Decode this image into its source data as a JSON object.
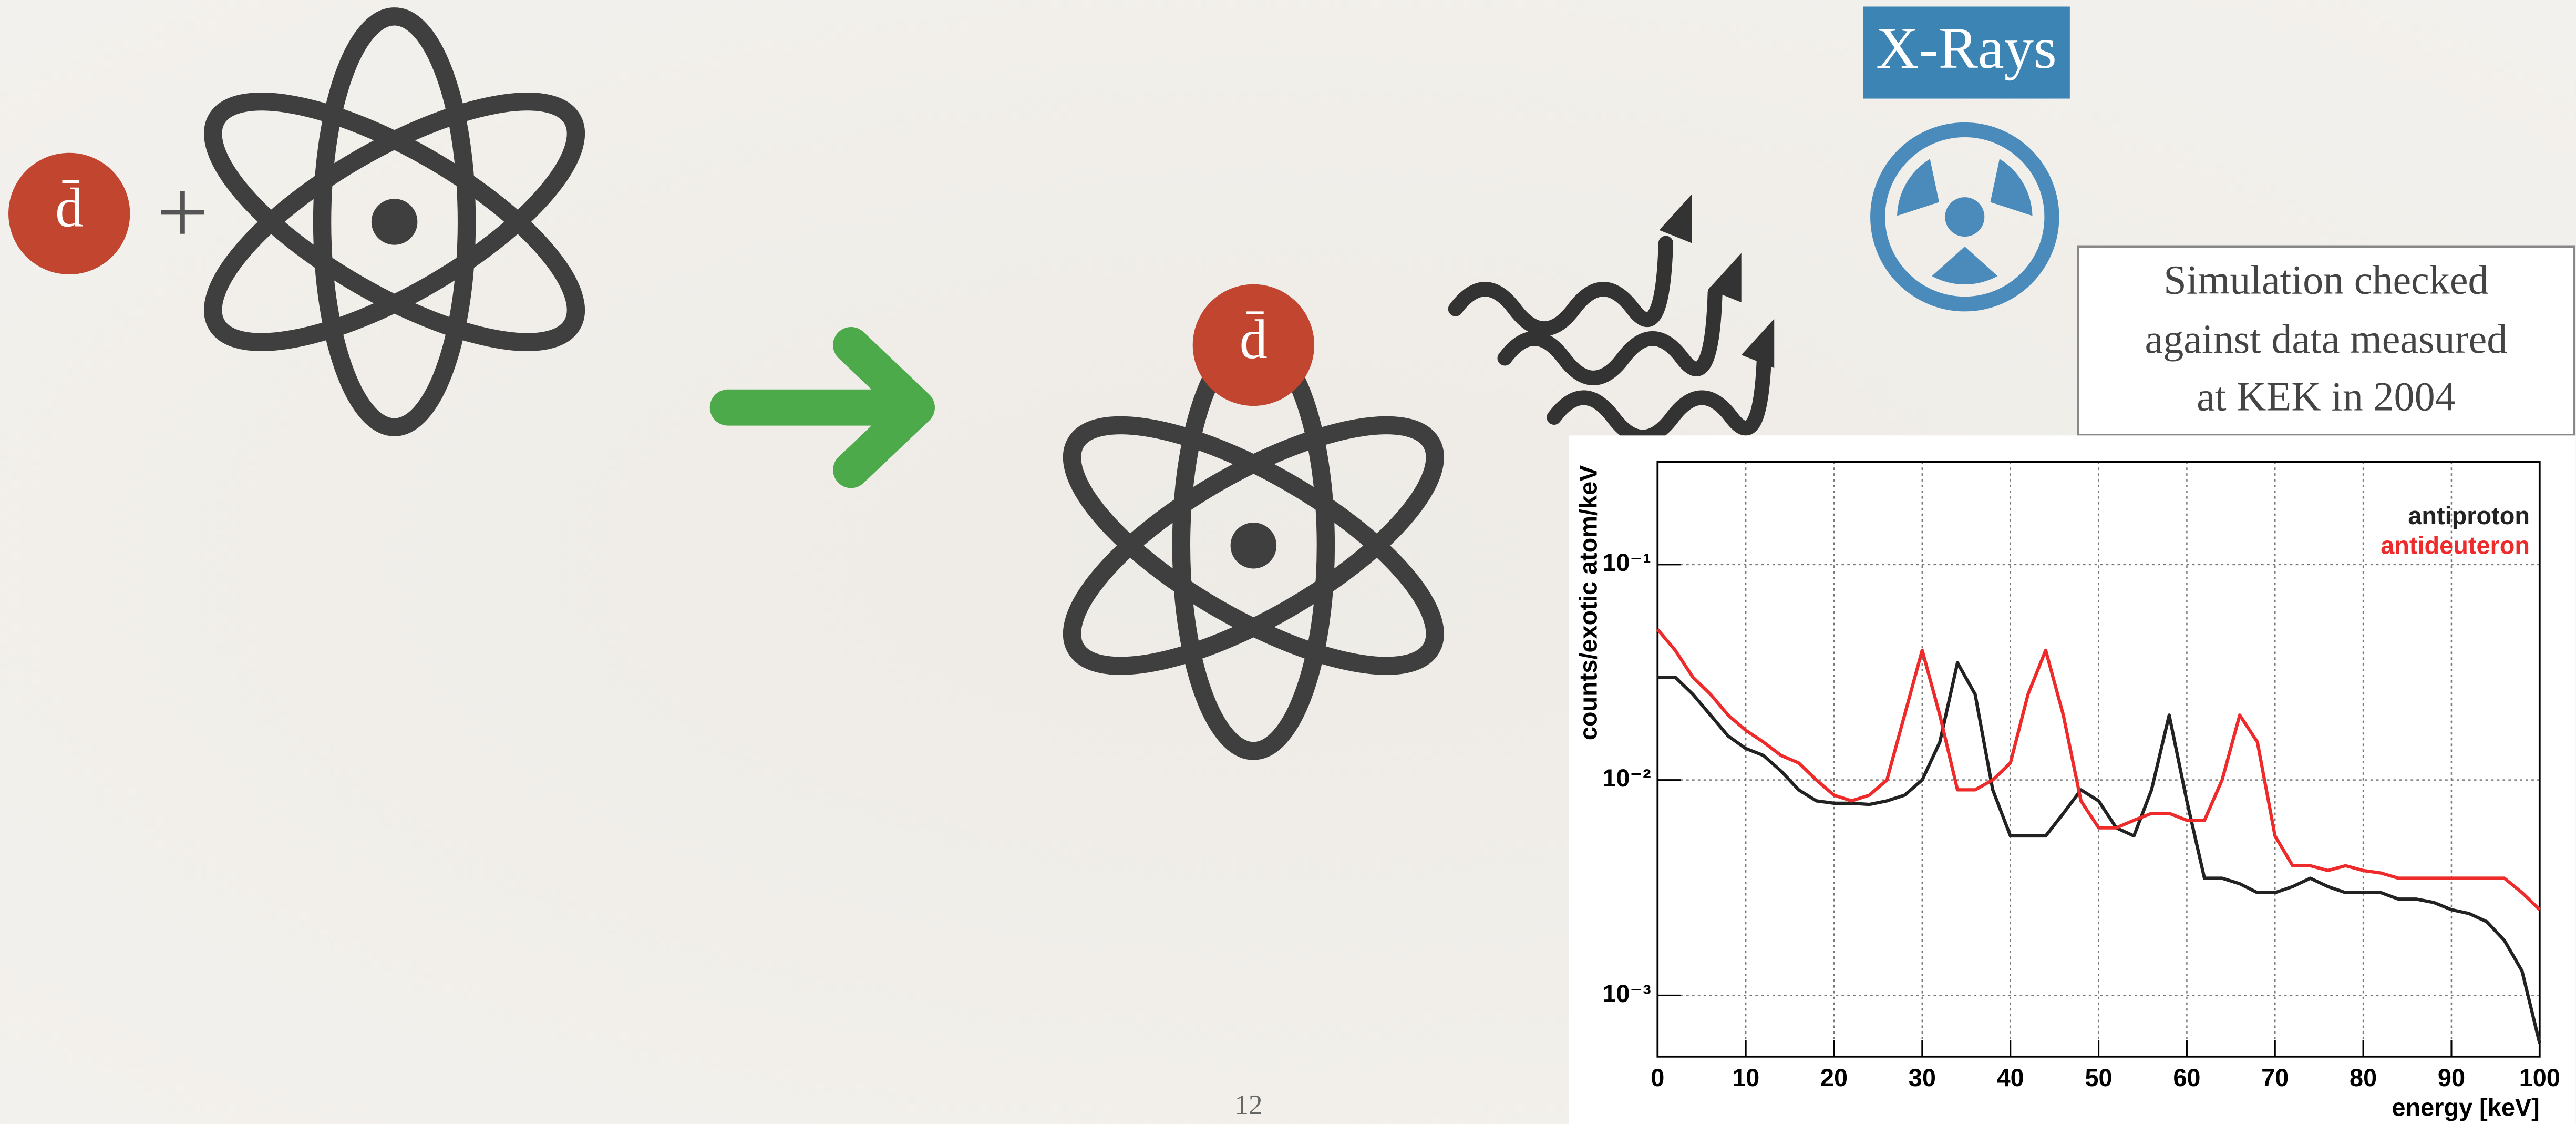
{
  "slide": {
    "antiparticle_label": "d̄",
    "bound_label": "d̄",
    "plus": "+",
    "xrays_label": "X-Rays",
    "callout": [
      "Simulation checked",
      "against data measured",
      "at KEK in 2004"
    ],
    "page_number": "12"
  },
  "chart_data": {
    "type": "line",
    "xlabel": "energy [keV]",
    "ylabel": "counts/exotic atom/keV",
    "x": [
      0,
      2,
      4,
      6,
      8,
      10,
      12,
      14,
      16,
      18,
      20,
      22,
      24,
      26,
      28,
      30,
      32,
      34,
      36,
      38,
      40,
      42,
      44,
      46,
      48,
      50,
      52,
      54,
      56,
      58,
      60,
      62,
      64,
      66,
      68,
      70,
      72,
      74,
      76,
      78,
      80,
      82,
      84,
      86,
      88,
      90,
      92,
      94,
      96,
      98,
      100
    ],
    "series": [
      {
        "name": "antiproton",
        "color": "#222222",
        "values": [
          0.03,
          0.03,
          0.025,
          0.02,
          0.016,
          0.014,
          0.013,
          0.011,
          0.009,
          0.008,
          0.0078,
          0.0078,
          0.0077,
          0.008,
          0.0085,
          0.01,
          0.015,
          0.035,
          0.025,
          0.009,
          0.0055,
          0.0055,
          0.0055,
          0.007,
          0.009,
          0.008,
          0.006,
          0.0055,
          0.009,
          0.02,
          0.008,
          0.0035,
          0.0035,
          0.0033,
          0.003,
          0.003,
          0.0032,
          0.0035,
          0.0032,
          0.003,
          0.003,
          0.003,
          0.0028,
          0.0028,
          0.0027,
          0.0025,
          0.0024,
          0.0022,
          0.0018,
          0.0013,
          0.0006
        ]
      },
      {
        "name": "antideuteron",
        "color": "#ee2a2a",
        "values": [
          0.05,
          0.04,
          0.03,
          0.025,
          0.02,
          0.017,
          0.015,
          0.013,
          0.012,
          0.01,
          0.0085,
          0.008,
          0.0085,
          0.01,
          0.02,
          0.04,
          0.02,
          0.009,
          0.009,
          0.01,
          0.012,
          0.025,
          0.04,
          0.02,
          0.008,
          0.006,
          0.006,
          0.0065,
          0.007,
          0.007,
          0.0065,
          0.0065,
          0.01,
          0.02,
          0.015,
          0.0055,
          0.004,
          0.004,
          0.0038,
          0.004,
          0.0038,
          0.0037,
          0.0035,
          0.0035,
          0.0035,
          0.0035,
          0.0035,
          0.0035,
          0.0035,
          0.003,
          0.0025
        ]
      }
    ],
    "xlim": [
      0,
      100
    ],
    "xticks": [
      0,
      10,
      20,
      30,
      40,
      50,
      60,
      70,
      80,
      90,
      100
    ],
    "ylim": [
      0.00052,
      0.3
    ],
    "yticks": [
      {
        "value": 0.001,
        "label": "10⁻³"
      },
      {
        "value": 0.01,
        "label": "10⁻²"
      },
      {
        "value": 0.1,
        "label": "10⁻¹"
      }
    ],
    "log_y": true,
    "grid": true,
    "legend": "upper right"
  }
}
